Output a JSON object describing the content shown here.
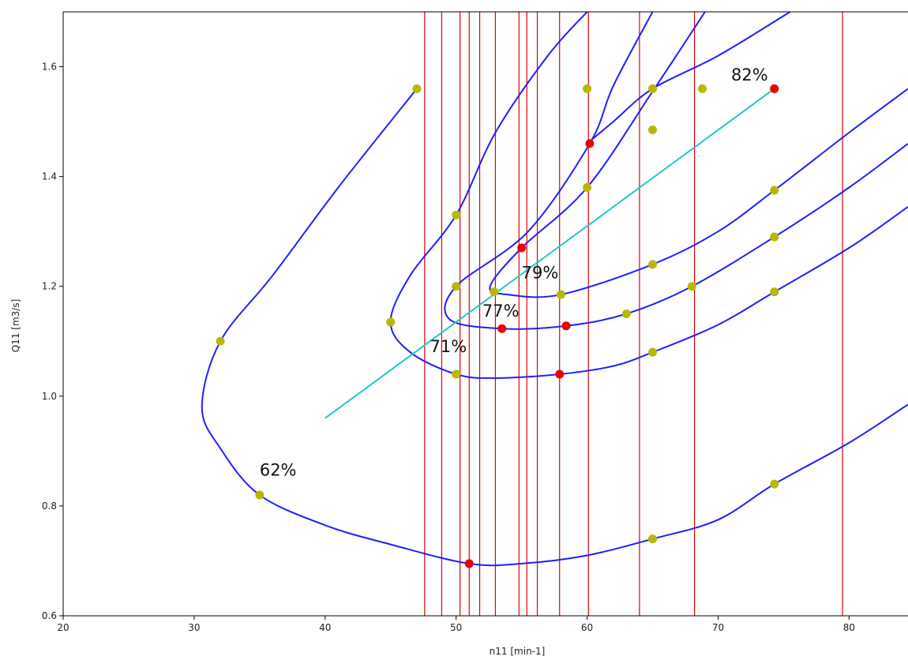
{
  "chart_data": {
    "type": "line",
    "xlabel": "n11 [min-1]",
    "ylabel": "Q11 [m3/s]",
    "xlim": [
      20,
      84.5
    ],
    "ylim": [
      0.6,
      1.7
    ],
    "x_ticks": [
      "20",
      "30",
      "40",
      "50",
      "60",
      "70",
      "80"
    ],
    "y_ticks": [
      "0.6",
      "0.8",
      "1.0",
      "1.2",
      "1.4",
      "1.6"
    ],
    "grid": false,
    "legend": "none",
    "colors": {
      "contour": "#1f1fff",
      "optimum_line": "#22c7c7",
      "vertical_lines": "#e00000",
      "points_yellow": "#b8b800",
      "points_red": "#ee0000"
    },
    "efficiency_labels": [
      {
        "text": "62%",
        "x": 35.0,
        "y": 0.855
      },
      {
        "text": "71%",
        "x": 48.0,
        "y": 1.08
      },
      {
        "text": "77%",
        "x": 52.0,
        "y": 1.145
      },
      {
        "text": "79%",
        "x": 55.0,
        "y": 1.215
      },
      {
        "text": "82%",
        "x": 71.0,
        "y": 1.575
      }
    ],
    "contours": [
      {
        "efficiency": "62%",
        "points": [
          [
            47.0,
            1.56
          ],
          [
            41.0,
            1.38
          ],
          [
            36.0,
            1.22
          ],
          [
            32.0,
            1.1
          ],
          [
            30.6,
            0.98
          ],
          [
            32.0,
            0.905
          ],
          [
            35.0,
            0.82
          ],
          [
            40.0,
            0.765
          ],
          [
            45.0,
            0.73
          ],
          [
            51.0,
            0.695
          ],
          [
            55.0,
            0.695
          ],
          [
            60.0,
            0.71
          ],
          [
            65.0,
            0.74
          ],
          [
            70.0,
            0.775
          ],
          [
            74.3,
            0.84
          ],
          [
            80.0,
            0.915
          ],
          [
            84.5,
            0.985
          ]
        ]
      },
      {
        "efficiency": "71%",
        "points": [
          [
            60.0,
            1.7
          ],
          [
            57.0,
            1.62
          ],
          [
            53.0,
            1.48
          ],
          [
            50.0,
            1.33
          ],
          [
            46.5,
            1.22
          ],
          [
            45.0,
            1.135
          ],
          [
            46.5,
            1.08
          ],
          [
            50.0,
            1.04
          ],
          [
            53.0,
            1.033
          ],
          [
            57.9,
            1.04
          ],
          [
            62.0,
            1.055
          ],
          [
            65.0,
            1.08
          ],
          [
            70.0,
            1.13
          ],
          [
            74.3,
            1.19
          ],
          [
            80.0,
            1.27
          ],
          [
            84.5,
            1.345
          ]
        ]
      },
      {
        "efficiency": "77%",
        "points": [
          [
            65.0,
            1.7
          ],
          [
            62.0,
            1.565
          ],
          [
            60.2,
            1.46
          ],
          [
            55.5,
            1.3
          ],
          [
            50.0,
            1.2
          ],
          [
            49.5,
            1.14
          ],
          [
            53.5,
            1.123
          ],
          [
            58.4,
            1.128
          ],
          [
            63.0,
            1.15
          ],
          [
            68.0,
            1.2
          ],
          [
            74.3,
            1.29
          ],
          [
            80.0,
            1.38
          ],
          [
            84.5,
            1.46
          ]
        ]
      },
      {
        "efficiency": "79%",
        "points": [
          [
            69.0,
            1.7
          ],
          [
            65.0,
            1.555
          ],
          [
            60.0,
            1.38
          ],
          [
            55.0,
            1.27
          ],
          [
            52.6,
            1.2
          ],
          [
            54.0,
            1.185
          ],
          [
            58.0,
            1.185
          ],
          [
            65.0,
            1.24
          ],
          [
            70.0,
            1.3
          ],
          [
            74.3,
            1.375
          ],
          [
            80.0,
            1.48
          ],
          [
            84.5,
            1.56
          ]
        ]
      },
      {
        "efficiency": "82%",
        "points": [
          [
            75.5,
            1.7
          ],
          [
            70.0,
            1.62
          ],
          [
            65.0,
            1.56
          ],
          [
            62.0,
            1.5
          ],
          [
            60.0,
            1.46
          ]
        ]
      }
    ],
    "optimum_line": [
      [
        40.0,
        0.96
      ],
      [
        74.3,
        1.56
      ]
    ],
    "vertical_lines_x": [
      47.6,
      48.9,
      50.3,
      51.0,
      51.8,
      53.0,
      54.8,
      55.4,
      56.2,
      57.9,
      60.1,
      64.0,
      68.2,
      79.5
    ],
    "points_yellow": [
      [
        47.0,
        1.56
      ],
      [
        60.0,
        1.56
      ],
      [
        65.0,
        1.56
      ],
      [
        68.8,
        1.56
      ],
      [
        65.0,
        1.485
      ],
      [
        60.0,
        1.38
      ],
      [
        74.3,
        1.375
      ],
      [
        50.0,
        1.33
      ],
      [
        74.3,
        1.29
      ],
      [
        65.0,
        1.24
      ],
      [
        50.0,
        1.2
      ],
      [
        68.0,
        1.2
      ],
      [
        74.3,
        1.19
      ],
      [
        52.9,
        1.19
      ],
      [
        58.0,
        1.185
      ],
      [
        63.0,
        1.15
      ],
      [
        45.0,
        1.135
      ],
      [
        32.0,
        1.1
      ],
      [
        65.0,
        1.08
      ],
      [
        50.0,
        1.04
      ],
      [
        74.3,
        0.84
      ],
      [
        35.0,
        0.82
      ],
      [
        65.0,
        0.74
      ]
    ],
    "points_red": [
      [
        74.3,
        1.56
      ],
      [
        60.2,
        1.46
      ],
      [
        55.0,
        1.27
      ],
      [
        58.4,
        1.128
      ],
      [
        53.5,
        1.123
      ],
      [
        57.9,
        1.04
      ],
      [
        51.0,
        0.695
      ]
    ]
  }
}
